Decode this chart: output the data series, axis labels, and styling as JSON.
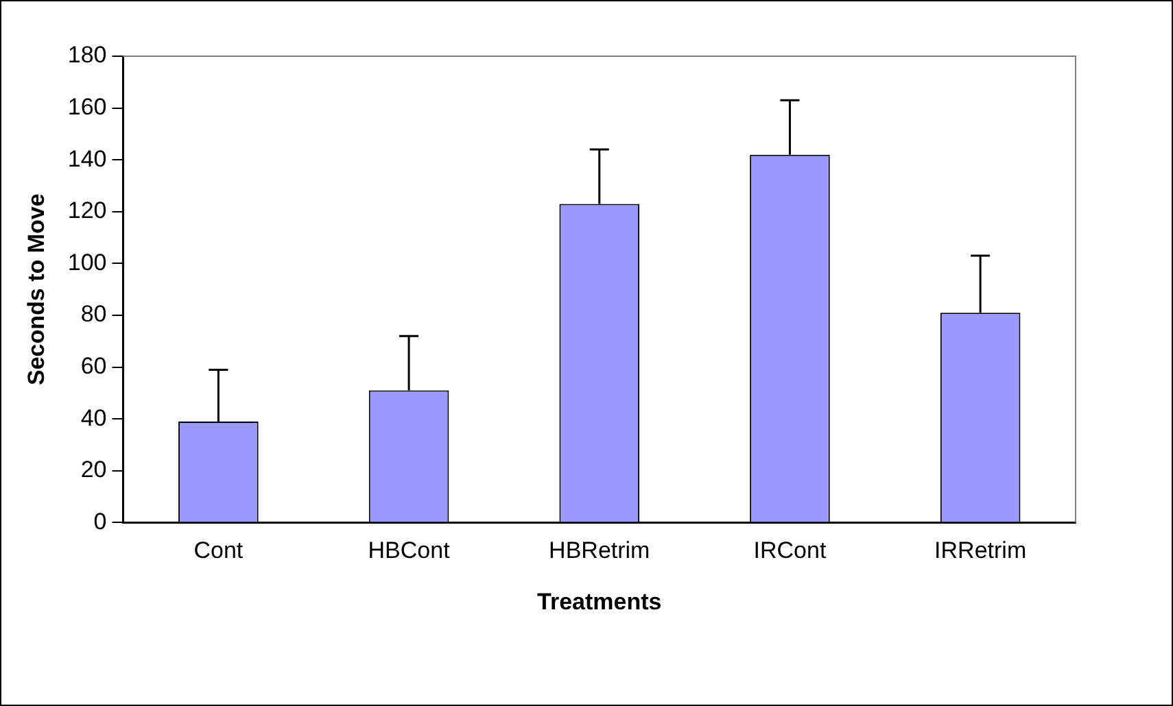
{
  "chart_data": {
    "type": "bar",
    "xlabel": "Treatments",
    "ylabel": "Seconds to Move",
    "categories": [
      "Cont",
      "HBCont",
      "HBRetrim",
      "IRCont",
      "IRRetrim"
    ],
    "values": [
      39,
      51,
      123,
      142,
      81
    ],
    "errors": [
      [
        39,
        59
      ],
      [
        51,
        72
      ],
      [
        123,
        144
      ],
      [
        142,
        163
      ],
      [
        81,
        103
      ]
    ],
    "color": "#9999ff",
    "ylim": [
      0,
      180
    ],
    "yticks": [
      0,
      20,
      40,
      60,
      80,
      100,
      120,
      140,
      160,
      180
    ],
    "grid": false,
    "legend": false
  }
}
